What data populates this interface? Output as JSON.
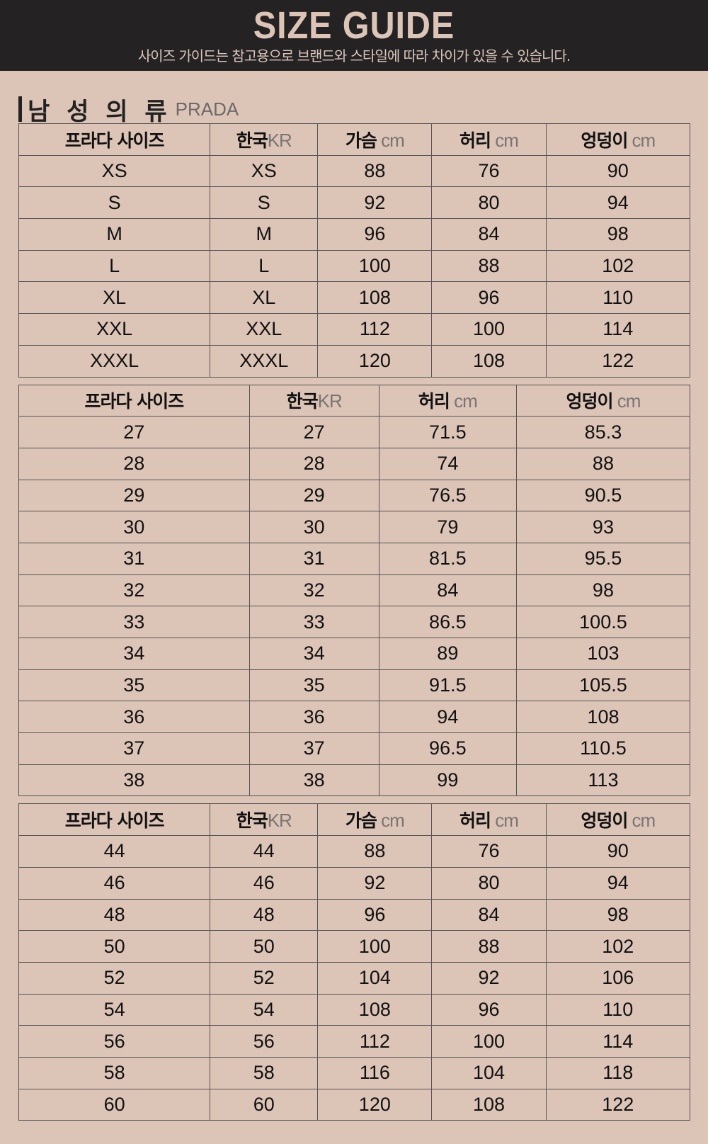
{
  "header": {
    "title": "SIZE GUIDE",
    "subtitle": "사이즈 가이드는 참고용으로 브랜드와 스타일에 따라 차이가 있을 수 있습니다."
  },
  "section": {
    "title": "남 성 의 류",
    "brand": "PRADA"
  },
  "tables": [
    {
      "headers": [
        {
          "label": "프라다 사이즈",
          "unit": ""
        },
        {
          "label": "한국",
          "unit": "KR"
        },
        {
          "label": "가슴",
          "unit": " cm"
        },
        {
          "label": "허리",
          "unit": " cm"
        },
        {
          "label": "엉덩이",
          "unit": " cm"
        }
      ],
      "rows": [
        [
          "XS",
          "XS",
          "88",
          "76",
          "90"
        ],
        [
          "S",
          "S",
          "92",
          "80",
          "94"
        ],
        [
          "M",
          "M",
          "96",
          "84",
          "98"
        ],
        [
          "L",
          "L",
          "100",
          "88",
          "102"
        ],
        [
          "XL",
          "XL",
          "108",
          "96",
          "110"
        ],
        [
          "XXL",
          "XXL",
          "112",
          "100",
          "114"
        ],
        [
          "XXXL",
          "XXXL",
          "120",
          "108",
          "122"
        ]
      ]
    },
    {
      "headers": [
        {
          "label": "프라다 사이즈",
          "unit": ""
        },
        {
          "label": "한국",
          "unit": "KR"
        },
        {
          "label": "허리",
          "unit": " cm"
        },
        {
          "label": "엉덩이",
          "unit": " cm"
        }
      ],
      "rows": [
        [
          "27",
          "27",
          "71.5",
          "85.3"
        ],
        [
          "28",
          "28",
          "74",
          "88"
        ],
        [
          "29",
          "29",
          "76.5",
          "90.5"
        ],
        [
          "30",
          "30",
          "79",
          "93"
        ],
        [
          "31",
          "31",
          "81.5",
          "95.5"
        ],
        [
          "32",
          "32",
          "84",
          "98"
        ],
        [
          "33",
          "33",
          "86.5",
          "100.5"
        ],
        [
          "34",
          "34",
          "89",
          "103"
        ],
        [
          "35",
          "35",
          "91.5",
          "105.5"
        ],
        [
          "36",
          "36",
          "94",
          "108"
        ],
        [
          "37",
          "37",
          "96.5",
          "110.5"
        ],
        [
          "38",
          "38",
          "99",
          "113"
        ]
      ]
    },
    {
      "headers": [
        {
          "label": "프라다 사이즈",
          "unit": ""
        },
        {
          "label": "한국",
          "unit": "KR"
        },
        {
          "label": "가슴",
          "unit": " cm"
        },
        {
          "label": "허리",
          "unit": " cm"
        },
        {
          "label": "엉덩이",
          "unit": " cm"
        }
      ],
      "rows": [
        [
          "44",
          "44",
          "88",
          "76",
          "90"
        ],
        [
          "46",
          "46",
          "92",
          "80",
          "94"
        ],
        [
          "48",
          "48",
          "96",
          "84",
          "98"
        ],
        [
          "50",
          "50",
          "100",
          "88",
          "102"
        ],
        [
          "52",
          "52",
          "104",
          "92",
          "106"
        ],
        [
          "54",
          "54",
          "108",
          "96",
          "110"
        ],
        [
          "56",
          "56",
          "112",
          "100",
          "114"
        ],
        [
          "58",
          "58",
          "116",
          "104",
          "118"
        ],
        [
          "60",
          "60",
          "120",
          "108",
          "122"
        ]
      ]
    }
  ]
}
